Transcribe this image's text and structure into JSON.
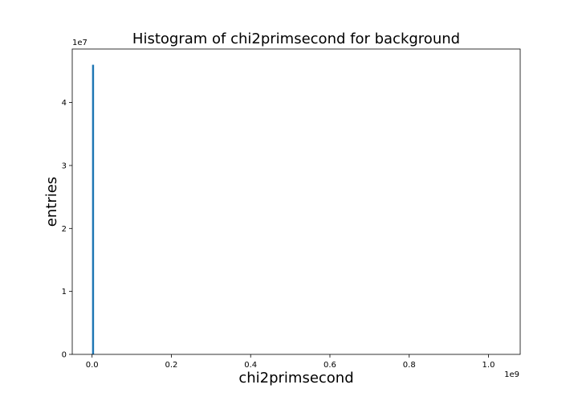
{
  "chart_data": {
    "type": "bar",
    "title": "Histogram of chi2primsecond for background",
    "xlabel": "chi2primsecond",
    "ylabel": "entries",
    "x_multiplier_label": "1e9",
    "y_multiplier_label": "1e7",
    "xlim": [
      -0.05,
      1.08
    ],
    "ylim": [
      0,
      4.85
    ],
    "x_ticks": [
      0.0,
      0.2,
      0.4,
      0.6,
      0.8,
      1.0
    ],
    "x_tick_labels": [
      "0.0",
      "0.2",
      "0.4",
      "0.6",
      "0.8",
      "1.0"
    ],
    "y_ticks": [
      0,
      1,
      2,
      3,
      4
    ],
    "y_tick_labels": [
      "0",
      "1",
      "2",
      "3",
      "4"
    ],
    "bars": [
      {
        "x_start": 0.0,
        "x_end": 0.005,
        "value": 4.6
      }
    ],
    "bar_color": "#1f77b4",
    "grid": false,
    "legend": "none"
  }
}
